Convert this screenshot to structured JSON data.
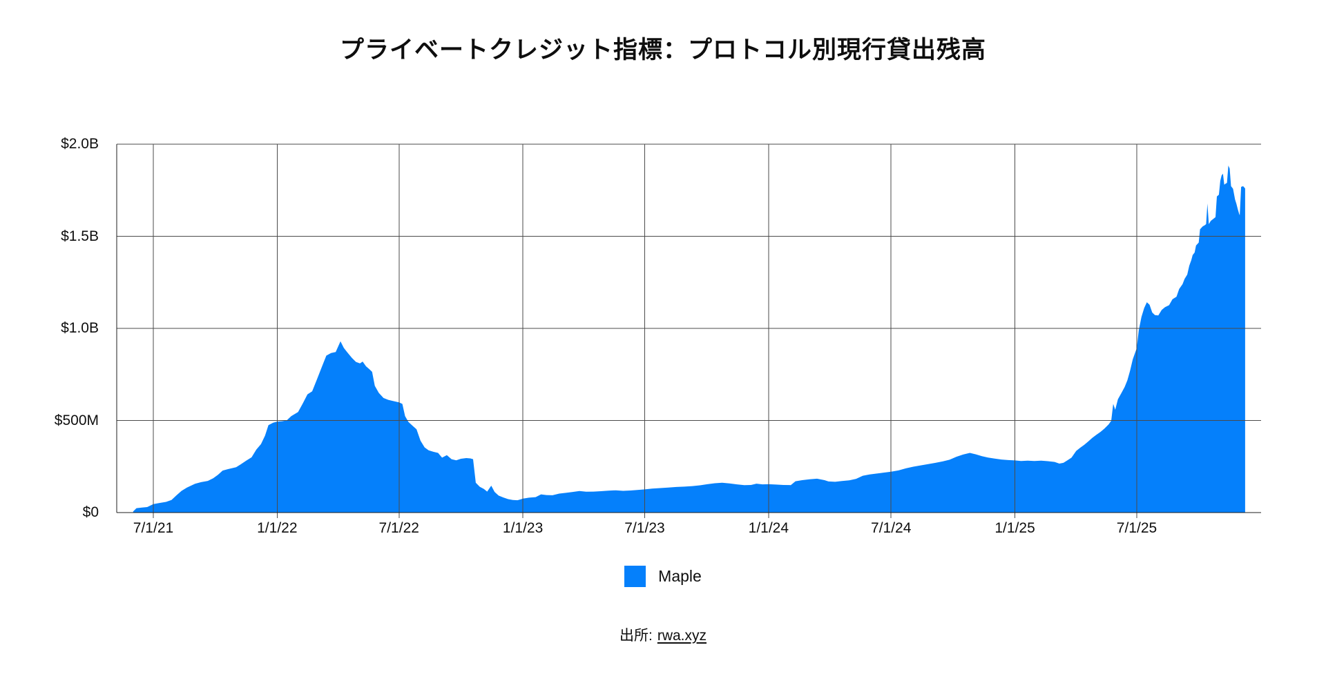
{
  "colors": {
    "background": "#ffffff",
    "area": "#0580fb",
    "grid": "#4a4a4a",
    "axis": "#1c1c1c",
    "text": "#0e0e0e"
  },
  "source": {
    "prefix": "出所:",
    "link_label": "rwa.xyz"
  },
  "chart_data": {
    "type": "area",
    "title": "プライベートクレジット指標：プロトコル別現行貸出残高",
    "xlabel": "",
    "ylabel": "",
    "unit": "USD (values in millions)",
    "grid": true,
    "legend_position": "bottom-center",
    "ylim": [
      0,
      2000
    ],
    "y_ticks": [
      {
        "value": 0,
        "label": "$0"
      },
      {
        "value": 500,
        "label": "$500M"
      },
      {
        "value": 1000,
        "label": "$1.0B"
      },
      {
        "value": 1500,
        "label": "$1.5B"
      },
      {
        "value": 2000,
        "label": "$2.0B"
      }
    ],
    "x_ticks": [
      {
        "date": "2021-07-01",
        "label": "7/1/21"
      },
      {
        "date": "2022-01-01",
        "label": "1/1/22"
      },
      {
        "date": "2022-07-01",
        "label": "7/1/22"
      },
      {
        "date": "2023-01-01",
        "label": "1/1/23"
      },
      {
        "date": "2023-07-01",
        "label": "7/1/23"
      },
      {
        "date": "2024-01-01",
        "label": "1/1/24"
      },
      {
        "date": "2024-07-01",
        "label": "7/1/24"
      },
      {
        "date": "2025-01-01",
        "label": "1/1/25"
      },
      {
        "date": "2025-07-01",
        "label": "7/1/25"
      }
    ],
    "series": [
      {
        "name": "Maple",
        "color": "#0580fb",
        "points": [
          [
            "2021-06-01",
            6
          ],
          [
            "2021-06-06",
            24
          ],
          [
            "2021-06-14",
            27
          ],
          [
            "2021-06-22",
            30
          ],
          [
            "2021-07-01",
            46
          ],
          [
            "2021-07-10",
            52
          ],
          [
            "2021-07-20",
            58
          ],
          [
            "2021-07-28",
            68
          ],
          [
            "2021-08-04",
            92
          ],
          [
            "2021-08-12",
            118
          ],
          [
            "2021-08-20",
            136
          ],
          [
            "2021-09-01",
            156
          ],
          [
            "2021-09-10",
            165
          ],
          [
            "2021-09-20",
            172
          ],
          [
            "2021-09-28",
            186
          ],
          [
            "2021-10-05",
            205
          ],
          [
            "2021-10-12",
            228
          ],
          [
            "2021-10-20",
            236
          ],
          [
            "2021-11-01",
            246
          ],
          [
            "2021-11-08",
            262
          ],
          [
            "2021-11-16",
            282
          ],
          [
            "2021-11-24",
            300
          ],
          [
            "2021-12-01",
            342
          ],
          [
            "2021-12-08",
            372
          ],
          [
            "2021-12-14",
            418
          ],
          [
            "2021-12-19",
            475
          ],
          [
            "2021-12-26",
            488
          ],
          [
            "2022-01-01",
            494
          ],
          [
            "2022-01-08",
            496
          ],
          [
            "2022-01-15",
            500
          ],
          [
            "2022-01-22",
            524
          ],
          [
            "2022-02-01",
            546
          ],
          [
            "2022-02-08",
            592
          ],
          [
            "2022-02-15",
            642
          ],
          [
            "2022-02-22",
            658
          ],
          [
            "2022-03-01",
            722
          ],
          [
            "2022-03-08",
            788
          ],
          [
            "2022-03-15",
            852
          ],
          [
            "2022-03-22",
            866
          ],
          [
            "2022-03-29",
            872
          ],
          [
            "2022-04-05",
            930
          ],
          [
            "2022-04-10",
            894
          ],
          [
            "2022-04-16",
            866
          ],
          [
            "2022-04-22",
            840
          ],
          [
            "2022-04-28",
            818
          ],
          [
            "2022-05-04",
            810
          ],
          [
            "2022-05-08",
            820
          ],
          [
            "2022-05-13",
            794
          ],
          [
            "2022-05-18",
            778
          ],
          [
            "2022-05-22",
            764
          ],
          [
            "2022-05-26",
            688
          ],
          [
            "2022-06-01",
            650
          ],
          [
            "2022-06-08",
            622
          ],
          [
            "2022-06-15",
            612
          ],
          [
            "2022-06-22",
            606
          ],
          [
            "2022-07-01",
            598
          ],
          [
            "2022-07-06",
            590
          ],
          [
            "2022-07-10",
            524
          ],
          [
            "2022-07-15",
            492
          ],
          [
            "2022-07-21",
            472
          ],
          [
            "2022-07-27",
            452
          ],
          [
            "2022-08-02",
            390
          ],
          [
            "2022-08-08",
            354
          ],
          [
            "2022-08-14",
            338
          ],
          [
            "2022-08-21",
            330
          ],
          [
            "2022-08-28",
            324
          ],
          [
            "2022-09-03",
            298
          ],
          [
            "2022-09-10",
            312
          ],
          [
            "2022-09-17",
            290
          ],
          [
            "2022-09-24",
            284
          ],
          [
            "2022-10-01",
            292
          ],
          [
            "2022-10-09",
            296
          ],
          [
            "2022-10-15",
            294
          ],
          [
            "2022-10-19",
            290
          ],
          [
            "2022-10-23",
            162
          ],
          [
            "2022-10-29",
            140
          ],
          [
            "2022-11-04",
            128
          ],
          [
            "2022-11-09",
            114
          ],
          [
            "2022-11-15",
            146
          ],
          [
            "2022-11-20",
            112
          ],
          [
            "2022-11-26",
            92
          ],
          [
            "2022-12-03",
            82
          ],
          [
            "2022-12-10",
            73
          ],
          [
            "2022-12-17",
            68
          ],
          [
            "2022-12-24",
            67
          ],
          [
            "2022-12-29",
            72
          ],
          [
            "2023-01-01",
            76
          ],
          [
            "2023-01-10",
            81
          ],
          [
            "2023-01-20",
            84
          ],
          [
            "2023-01-28",
            99
          ],
          [
            "2023-02-05",
            95
          ],
          [
            "2023-02-14",
            94
          ],
          [
            "2023-02-24",
            103
          ],
          [
            "2023-03-06",
            107
          ],
          [
            "2023-03-16",
            112
          ],
          [
            "2023-03-26",
            117
          ],
          [
            "2023-04-05",
            113
          ],
          [
            "2023-04-16",
            114
          ],
          [
            "2023-04-27",
            116
          ],
          [
            "2023-05-08",
            119
          ],
          [
            "2023-05-19",
            121
          ],
          [
            "2023-05-30",
            118
          ],
          [
            "2023-06-10",
            120
          ],
          [
            "2023-06-20",
            123
          ],
          [
            "2023-07-01",
            126
          ],
          [
            "2023-07-12",
            130
          ],
          [
            "2023-07-24",
            133
          ],
          [
            "2023-08-05",
            136
          ],
          [
            "2023-08-17",
            139
          ],
          [
            "2023-08-29",
            141
          ],
          [
            "2023-09-10",
            144
          ],
          [
            "2023-09-21",
            148
          ],
          [
            "2023-10-02",
            154
          ],
          [
            "2023-10-13",
            159
          ],
          [
            "2023-10-24",
            162
          ],
          [
            "2023-11-04",
            158
          ],
          [
            "2023-11-15",
            153
          ],
          [
            "2023-11-26",
            149
          ],
          [
            "2023-12-06",
            150
          ],
          [
            "2023-12-14",
            157
          ],
          [
            "2023-12-23",
            153
          ],
          [
            "2024-01-01",
            154
          ],
          [
            "2024-01-12",
            152
          ],
          [
            "2024-01-23",
            150
          ],
          [
            "2024-02-03",
            149
          ],
          [
            "2024-02-10",
            170
          ],
          [
            "2024-02-20",
            176
          ],
          [
            "2024-03-02",
            181
          ],
          [
            "2024-03-13",
            184
          ],
          [
            "2024-03-24",
            176
          ],
          [
            "2024-03-30",
            169
          ],
          [
            "2024-04-09",
            167
          ],
          [
            "2024-04-19",
            171
          ],
          [
            "2024-04-30",
            175
          ],
          [
            "2024-05-10",
            183
          ],
          [
            "2024-05-20",
            200
          ],
          [
            "2024-05-30",
            207
          ],
          [
            "2024-06-10",
            212
          ],
          [
            "2024-06-20",
            217
          ],
          [
            "2024-07-01",
            222
          ],
          [
            "2024-07-12",
            229
          ],
          [
            "2024-07-23",
            240
          ],
          [
            "2024-08-03",
            249
          ],
          [
            "2024-08-14",
            256
          ],
          [
            "2024-08-25",
            263
          ],
          [
            "2024-09-05",
            270
          ],
          [
            "2024-09-16",
            278
          ],
          [
            "2024-09-26",
            287
          ],
          [
            "2024-10-06",
            303
          ],
          [
            "2024-10-16",
            315
          ],
          [
            "2024-10-26",
            324
          ],
          [
            "2024-11-04",
            316
          ],
          [
            "2024-11-13",
            306
          ],
          [
            "2024-11-22",
            299
          ],
          [
            "2024-12-02",
            293
          ],
          [
            "2024-12-12",
            288
          ],
          [
            "2024-12-22",
            285
          ],
          [
            "2025-01-01",
            283
          ],
          [
            "2025-01-10",
            280
          ],
          [
            "2025-01-20",
            282
          ],
          [
            "2025-01-30",
            280
          ],
          [
            "2025-02-09",
            282
          ],
          [
            "2025-02-19",
            279
          ],
          [
            "2025-03-01",
            275
          ],
          [
            "2025-03-08",
            266
          ],
          [
            "2025-03-14",
            270
          ],
          [
            "2025-03-20",
            284
          ],
          [
            "2025-03-26",
            298
          ],
          [
            "2025-04-02",
            335
          ],
          [
            "2025-04-08",
            352
          ],
          [
            "2025-04-14",
            368
          ],
          [
            "2025-04-20",
            386
          ],
          [
            "2025-04-26",
            406
          ],
          [
            "2025-05-02",
            422
          ],
          [
            "2025-05-08",
            438
          ],
          [
            "2025-05-14",
            456
          ],
          [
            "2025-05-20",
            478
          ],
          [
            "2025-05-24",
            498
          ],
          [
            "2025-05-27",
            590
          ],
          [
            "2025-05-30",
            558
          ],
          [
            "2025-06-03",
            615
          ],
          [
            "2025-06-08",
            648
          ],
          [
            "2025-06-13",
            682
          ],
          [
            "2025-06-17",
            718
          ],
          [
            "2025-06-21",
            770
          ],
          [
            "2025-06-25",
            832
          ],
          [
            "2025-07-01",
            893
          ],
          [
            "2025-07-04",
            990
          ],
          [
            "2025-07-08",
            1062
          ],
          [
            "2025-07-12",
            1110
          ],
          [
            "2025-07-16",
            1142
          ],
          [
            "2025-07-20",
            1128
          ],
          [
            "2025-07-24",
            1086
          ],
          [
            "2025-07-28",
            1072
          ],
          [
            "2025-08-02",
            1070
          ],
          [
            "2025-08-07",
            1100
          ],
          [
            "2025-08-12",
            1115
          ],
          [
            "2025-08-18",
            1126
          ],
          [
            "2025-08-23",
            1158
          ],
          [
            "2025-08-29",
            1172
          ],
          [
            "2025-09-02",
            1214
          ],
          [
            "2025-09-07",
            1240
          ],
          [
            "2025-09-10",
            1268
          ],
          [
            "2025-09-14",
            1292
          ],
          [
            "2025-09-17",
            1340
          ],
          [
            "2025-09-20",
            1370
          ],
          [
            "2025-09-22",
            1398
          ],
          [
            "2025-09-25",
            1412
          ],
          [
            "2025-09-27",
            1450
          ],
          [
            "2025-10-01",
            1466
          ],
          [
            "2025-10-03",
            1538
          ],
          [
            "2025-10-07",
            1554
          ],
          [
            "2025-10-10",
            1560
          ],
          [
            "2025-10-12",
            1566
          ],
          [
            "2025-10-14",
            1678
          ],
          [
            "2025-10-16",
            1566
          ],
          [
            "2025-10-19",
            1584
          ],
          [
            "2025-10-22",
            1592
          ],
          [
            "2025-10-26",
            1604
          ],
          [
            "2025-10-28",
            1716
          ],
          [
            "2025-10-31",
            1726
          ],
          [
            "2025-11-02",
            1800
          ],
          [
            "2025-11-04",
            1830
          ],
          [
            "2025-11-06",
            1840
          ],
          [
            "2025-11-08",
            1780
          ],
          [
            "2025-11-10",
            1786
          ],
          [
            "2025-11-12",
            1790
          ],
          [
            "2025-11-14",
            1884
          ],
          [
            "2025-11-16",
            1868
          ],
          [
            "2025-11-18",
            1772
          ],
          [
            "2025-11-21",
            1758
          ],
          [
            "2025-11-24",
            1700
          ],
          [
            "2025-11-26",
            1676
          ],
          [
            "2025-11-28",
            1648
          ],
          [
            "2025-11-30",
            1622
          ],
          [
            "2025-12-01",
            1614
          ],
          [
            "2025-12-03",
            1768
          ],
          [
            "2025-12-06",
            1772
          ],
          [
            "2025-12-09",
            1760
          ]
        ]
      }
    ]
  }
}
